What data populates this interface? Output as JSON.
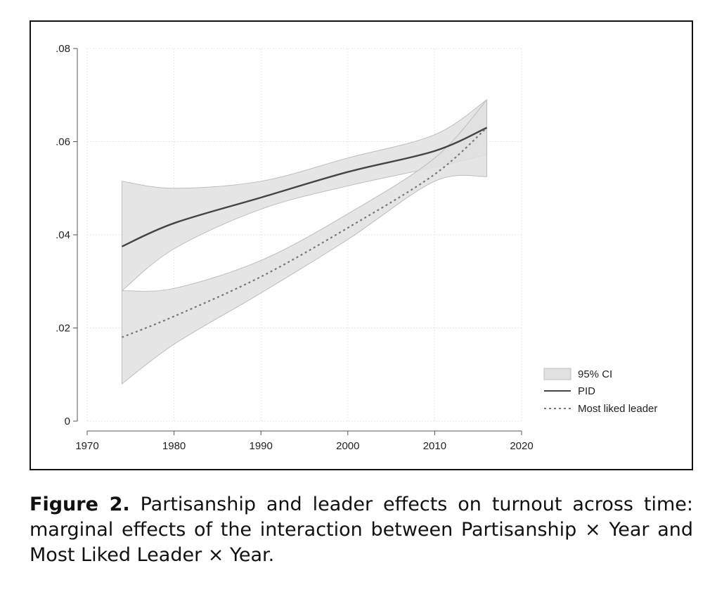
{
  "chart_data": {
    "type": "line",
    "xlim": [
      1970,
      2020
    ],
    "ylim": [
      0,
      0.08
    ],
    "x_ticks": [
      1970,
      1980,
      1990,
      2000,
      2010,
      2020
    ],
    "x_tick_labels": [
      "1970",
      "1980",
      "1990",
      "2000",
      "2010",
      "2020"
    ],
    "y_ticks": [
      0,
      0.02,
      0.04,
      0.06,
      0.08
    ],
    "y_tick_labels": [
      "0",
      ".02",
      ".04",
      ".06",
      ".08"
    ],
    "grid": true,
    "legend_position": "bottom-right",
    "legend": {
      "ci_label": "95% CI",
      "pid_label": "PID",
      "leader_label": "Most liked leader"
    },
    "x": [
      1974,
      1980,
      1990,
      2000,
      2010,
      2016
    ],
    "series": [
      {
        "name": "PID",
        "style": "solid",
        "values": [
          0.0375,
          0.0425,
          0.048,
          0.0535,
          0.058,
          0.063
        ],
        "ci_lower": [
          0.028,
          0.037,
          0.0455,
          0.0505,
          0.0545,
          0.0572
        ],
        "ci_upper": [
          0.0515,
          0.05,
          0.0515,
          0.0565,
          0.0615,
          0.069
        ]
      },
      {
        "name": "Most liked leader",
        "style": "dotted",
        "values": [
          0.018,
          0.0225,
          0.031,
          0.0415,
          0.053,
          0.063
        ],
        "ci_lower": [
          0.008,
          0.0165,
          0.0275,
          0.039,
          0.0515,
          0.0525
        ],
        "ci_upper": [
          0.028,
          0.0285,
          0.0345,
          0.0445,
          0.0565,
          0.069
        ]
      }
    ]
  },
  "caption": {
    "label": "Figure 2.",
    "text": "Partisanship and leader effects on turnout across time: marginal effects of the interaction between Partisanship × Year and Most Liked Leader × Year."
  },
  "colors": {
    "ci_fill": "#e1e1e1",
    "ci_edge": "#bdbdbd",
    "pid_line": "#444444",
    "leader_line": "#777777",
    "grid": "#e8e8e8",
    "axis": "#555555"
  }
}
